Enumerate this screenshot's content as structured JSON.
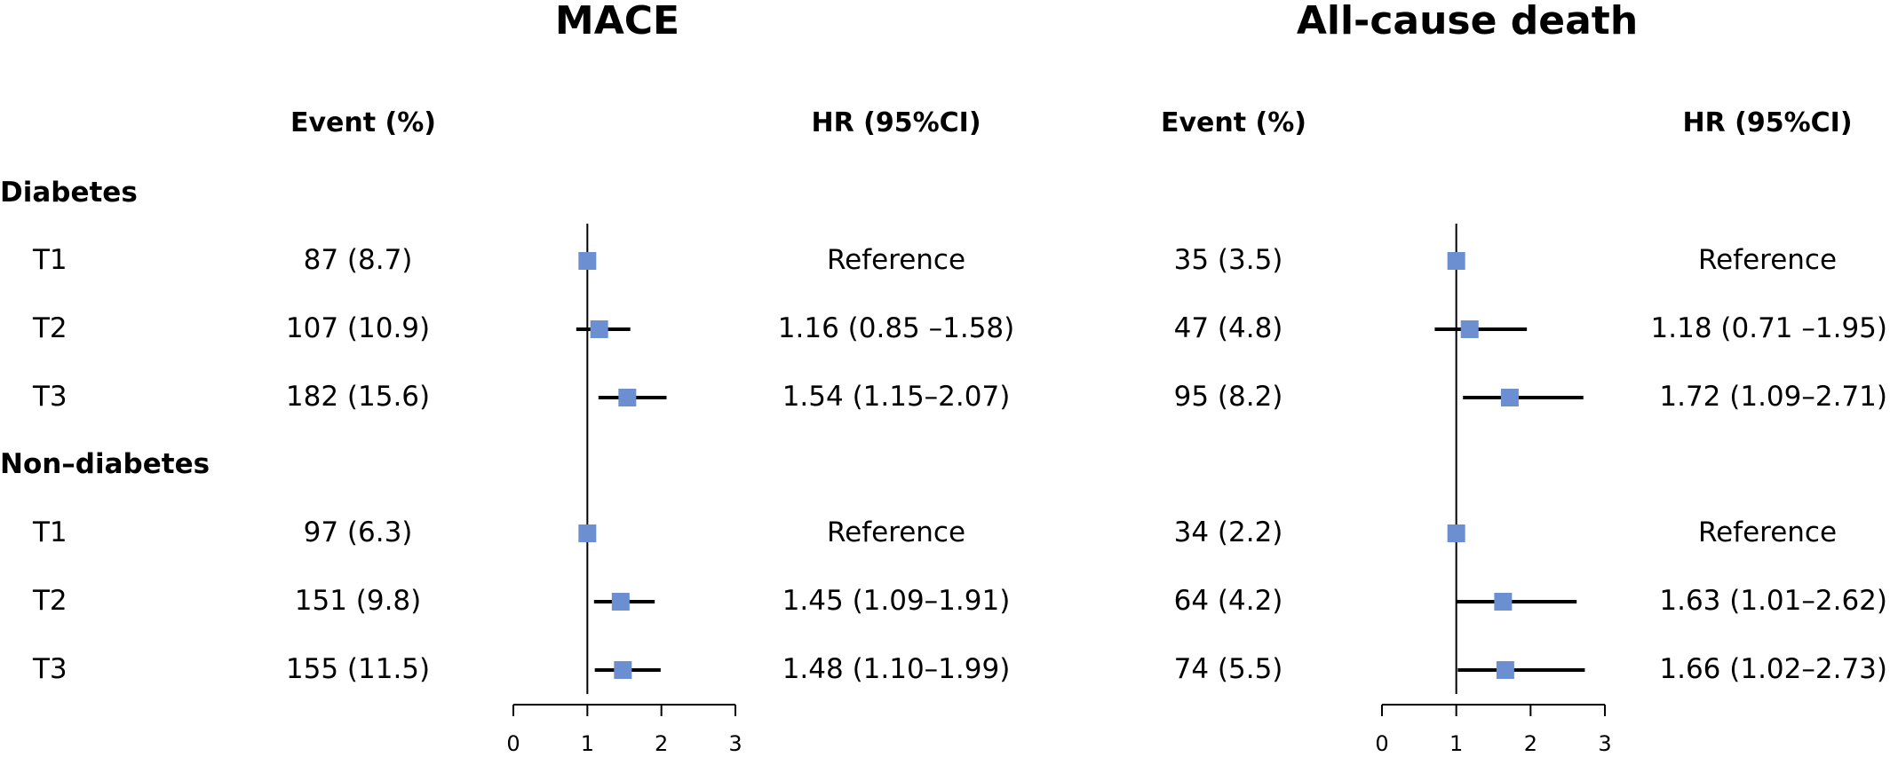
{
  "chart_data": [
    {
      "type": "forest",
      "title": "MACE",
      "columns": {
        "event": "Event (%)",
        "hr": "HR (95%CI)"
      },
      "xlim": [
        0,
        3
      ],
      "xticks": [
        "0",
        "1",
        "2",
        "3"
      ],
      "reference_line": 1,
      "groups": [
        {
          "label": "Diabetes",
          "rows": [
            {
              "label": "T1",
              "event": "87 (8.7)",
              "hr_text": "Reference",
              "hr": 1,
              "lo": 1,
              "hi": 1
            },
            {
              "label": "T2",
              "event": "107 (10.9)",
              "hr_text": "1.16 (0.85 –1.58)",
              "hr": 1.16,
              "lo": 0.85,
              "hi": 1.58
            },
            {
              "label": "T3",
              "event": "182 (15.6)",
              "hr_text": "1.54 (1.15–2.07)",
              "hr": 1.54,
              "lo": 1.15,
              "hi": 2.07
            }
          ]
        },
        {
          "label": "Non–diabetes",
          "rows": [
            {
              "label": "T1",
              "event": "97 (6.3)",
              "hr_text": "Reference",
              "hr": 1,
              "lo": 1,
              "hi": 1
            },
            {
              "label": "T2",
              "event": "151 (9.8)",
              "hr_text": "1.45 (1.09–1.91)",
              "hr": 1.45,
              "lo": 1.09,
              "hi": 1.91
            },
            {
              "label": "T3",
              "event": "155 (11.5)",
              "hr_text": "1.48 (1.10–1.99)",
              "hr": 1.48,
              "lo": 1.1,
              "hi": 1.99
            }
          ]
        }
      ]
    },
    {
      "type": "forest",
      "title": "All-cause death",
      "columns": {
        "event": "Event (%)",
        "hr": "HR (95%CI)"
      },
      "xlim": [
        0,
        3
      ],
      "xticks": [
        "0",
        "1",
        "2",
        "3"
      ],
      "reference_line": 1,
      "groups": [
        {
          "label": "Diabetes",
          "rows": [
            {
              "label": "T1",
              "event": "35 (3.5)",
              "hr_text": "Reference",
              "hr": 1,
              "lo": 1,
              "hi": 1
            },
            {
              "label": "T2",
              "event": "47 (4.8)",
              "hr_text": "1.18 (0.71 –1.95)",
              "hr": 1.18,
              "lo": 0.71,
              "hi": 1.95
            },
            {
              "label": "T3",
              "event": "95 (8.2)",
              "hr_text": "1.72 (1.09–2.71)",
              "hr": 1.72,
              "lo": 1.09,
              "hi": 2.71
            }
          ]
        },
        {
          "label": "Non–diabetes",
          "rows": [
            {
              "label": "T1",
              "event": "34 (2.2)",
              "hr_text": "Reference",
              "hr": 1,
              "lo": 1,
              "hi": 1
            },
            {
              "label": "T2",
              "event": "64 (4.2)",
              "hr_text": "1.63 (1.01–2.62)",
              "hr": 1.63,
              "lo": 1.01,
              "hi": 2.62
            },
            {
              "label": "T3",
              "event": "74 (5.5)",
              "hr_text": "1.66 (1.02–2.73)",
              "hr": 1.66,
              "lo": 1.02,
              "hi": 2.73
            }
          ]
        }
      ]
    }
  ],
  "colors": {
    "marker": "#6b8fd1",
    "line": "#000000",
    "text": "#000000"
  }
}
